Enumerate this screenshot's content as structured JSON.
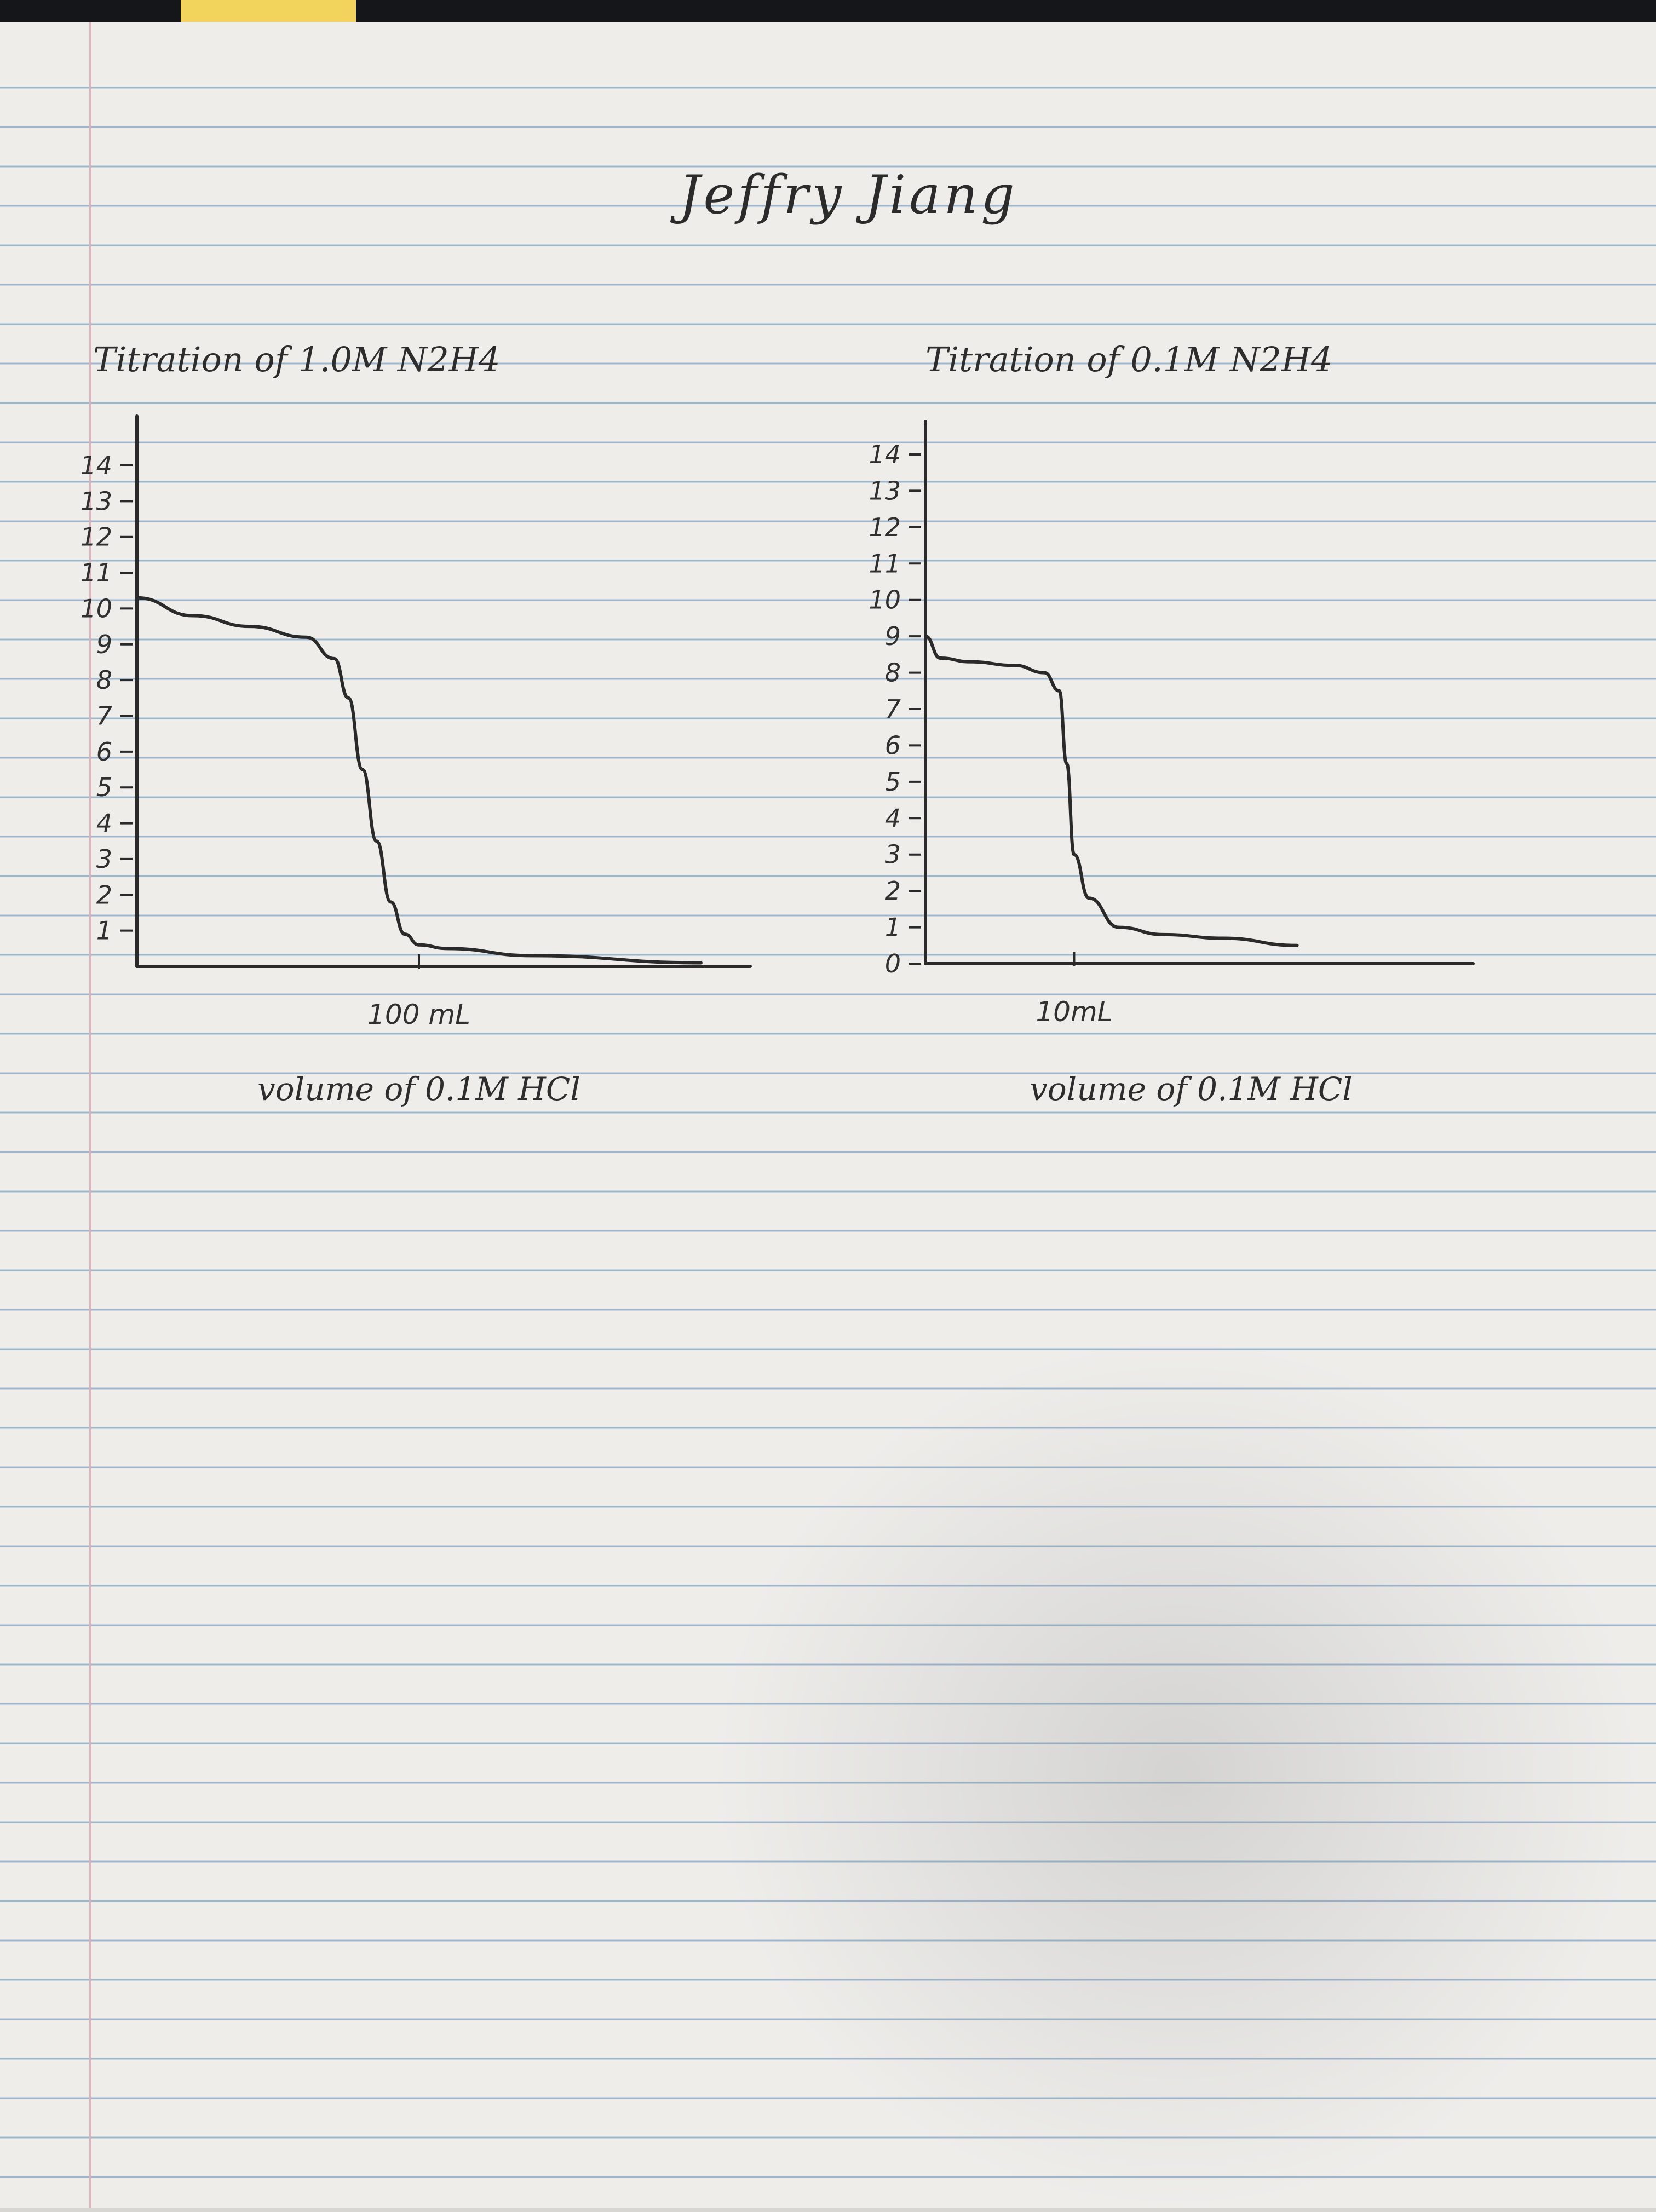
{
  "page": {
    "name": "Jeffry Jiang"
  },
  "chart_data": [
    {
      "type": "line",
      "title": "Titration of 1.0M N2H4",
      "xlabel": "volume of 0.1M HCl",
      "ylabel": "",
      "x_tick_labels": [
        "100 mL"
      ],
      "y_tick_labels": [
        "1",
        "2",
        "3",
        "4",
        "5",
        "6",
        "7",
        "8",
        "9",
        "10",
        "11",
        "12",
        "13",
        "14"
      ],
      "xlim": [
        0,
        200
      ],
      "ylim": [
        0,
        14
      ],
      "series": [
        {
          "x": [
            0,
            20,
            40,
            60,
            70,
            75,
            80,
            85,
            90,
            95,
            100,
            110,
            140,
            200
          ],
          "y": [
            10.3,
            9.8,
            9.5,
            9.2,
            8.6,
            7.5,
            5.5,
            3.5,
            1.8,
            0.9,
            0.6,
            0.5,
            0.3,
            0.1
          ]
        }
      ],
      "grid": false
    },
    {
      "type": "line",
      "title": "Titration of 0.1M N2H4",
      "xlabel": "volume of 0.1M HCl",
      "ylabel": "",
      "x_tick_labels": [
        "10mL"
      ],
      "y_tick_labels": [
        "0",
        "1",
        "2",
        "3",
        "4",
        "5",
        "6",
        "7",
        "8",
        "9",
        "10",
        "11",
        "12",
        "13",
        "14"
      ],
      "xlim": [
        0,
        35
      ],
      "ylim": [
        0,
        14
      ],
      "series": [
        {
          "x": [
            0,
            1,
            3,
            6,
            8,
            9,
            9.5,
            10,
            11,
            13,
            16,
            20,
            25
          ],
          "y": [
            9.0,
            8.4,
            8.3,
            8.2,
            8.0,
            7.5,
            5.5,
            3.0,
            1.8,
            1.0,
            0.8,
            0.7,
            0.5
          ]
        }
      ],
      "grid": false
    }
  ]
}
